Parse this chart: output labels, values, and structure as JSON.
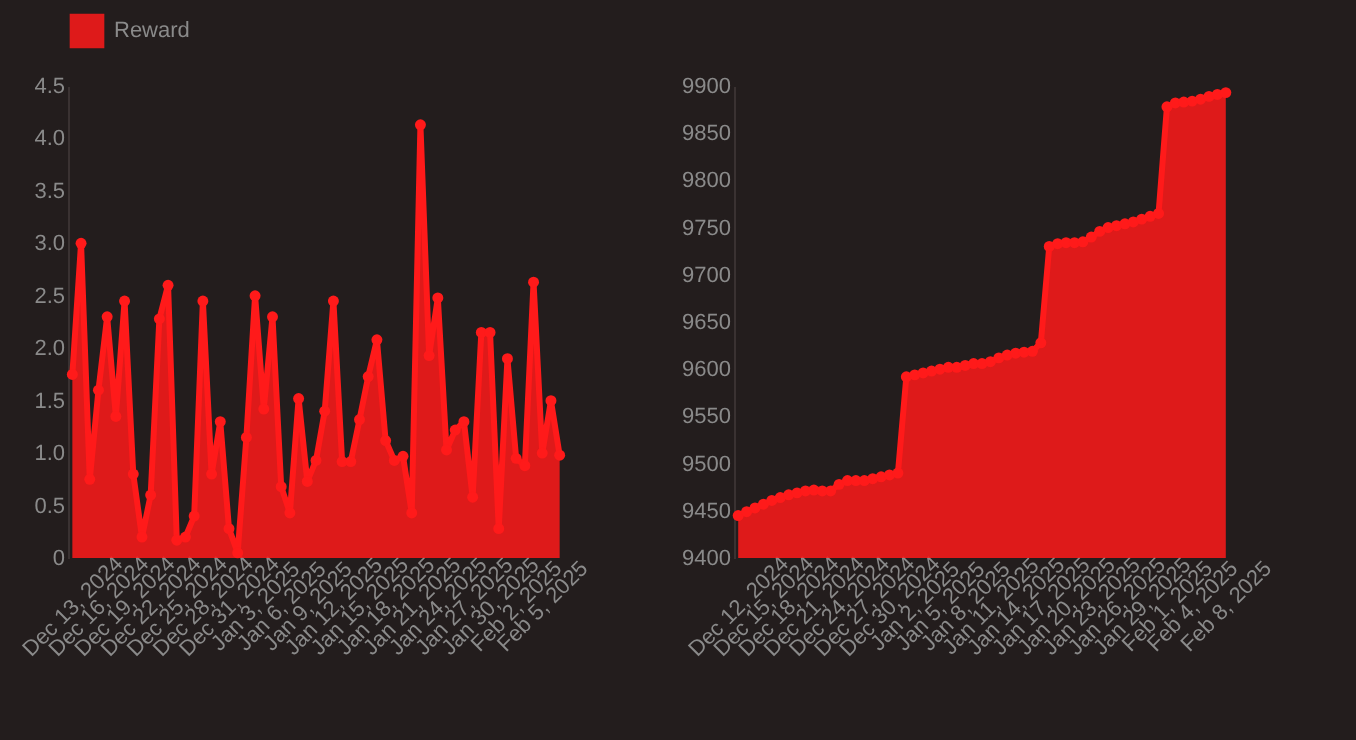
{
  "chart_data": [
    {
      "type": "area",
      "categories": [
        "Dec 13, 2024",
        null,
        null,
        "Dec 16, 2024",
        null,
        null,
        "Dec 19, 2024",
        null,
        null,
        "Dec 22, 2024",
        null,
        null,
        "Dec 25, 2024",
        null,
        null,
        "Dec 28, 2024",
        null,
        null,
        "Dec 31, 2024",
        null,
        null,
        "Jan 3, 2025",
        null,
        null,
        "Jan 6, 2025",
        null,
        null,
        "Jan 9, 2025",
        null,
        null,
        "Jan 12, 2025",
        null,
        null,
        "Jan 15, 2025",
        null,
        null,
        "Jan 18, 2025",
        null,
        null,
        "Jan 21, 2025",
        null,
        null,
        "Jan 24, 2025",
        null,
        null,
        "Jan 27, 2025",
        null,
        null,
        "Jan 30, 2025",
        null,
        null,
        "Feb 2, 2025",
        null,
        null,
        "Feb 5, 2025",
        null,
        null
      ],
      "series": [
        {
          "name": "Reward",
          "color": "#ff1a1a",
          "values": [
            1.75,
            3.0,
            0.75,
            1.6,
            2.3,
            1.35,
            2.45,
            0.8,
            0.2,
            0.6,
            2.28,
            2.6,
            0.17,
            0.2,
            0.4,
            2.45,
            0.8,
            1.3,
            0.28,
            0.05,
            1.15,
            2.5,
            1.42,
            2.3,
            0.68,
            0.43,
            1.52,
            0.73,
            0.93,
            1.4,
            2.45,
            0.92,
            0.92,
            1.32,
            1.73,
            2.08,
            1.12,
            0.93,
            0.97,
            0.43,
            4.13,
            1.93,
            2.48,
            1.03,
            1.22,
            1.3,
            0.58,
            2.15,
            2.15,
            0.28,
            1.9,
            0.95,
            0.88,
            2.63,
            1.0,
            1.5,
            0.98
          ]
        }
      ],
      "ylim": [
        0,
        4.5
      ],
      "yticks": [
        0,
        0.5,
        {
          "value": 1,
          "label": "1.0"
        },
        1.5,
        {
          "value": 2,
          "label": "2.0"
        },
        2.5,
        {
          "value": 3,
          "label": "3.0"
        },
        3.5,
        {
          "value": 4,
          "label": "4.0"
        },
        4.5
      ],
      "legend": "top",
      "marker": "circle",
      "grid": false
    },
    {
      "type": "area",
      "categories": [
        "Dec 12, 2024",
        null,
        null,
        "Dec 15, 2024",
        null,
        null,
        "Dec 18, 2024",
        null,
        null,
        "Dec 21, 2024",
        null,
        null,
        "Dec 24, 2024",
        null,
        null,
        "Dec 27, 2024",
        null,
        null,
        "Dec 30, 2024",
        null,
        null,
        "Jan 2, 2025",
        null,
        null,
        "Jan 5, 2025",
        null,
        null,
        "Jan 8, 2025",
        null,
        null,
        "Jan 11, 2025",
        null,
        null,
        "Jan 14, 2025",
        null,
        null,
        "Jan 17, 2025",
        null,
        null,
        "Jan 20, 2025",
        null,
        null,
        "Jan 23, 2025",
        null,
        null,
        "Jan 26, 2025",
        null,
        null,
        "Jan 29, 2025",
        null,
        null,
        "Feb 1, 2025",
        null,
        null,
        "Feb 4, 2025",
        null,
        null,
        null,
        "Feb 8, 2025"
      ],
      "series": [
        {
          "color": "#ff1a1a",
          "values": [
            9445,
            9449,
            9453,
            9457,
            9461,
            9464,
            9467,
            9469,
            9471,
            9472,
            9471,
            9471,
            9478,
            9482,
            9482,
            9482,
            9484,
            9486,
            9488,
            9490,
            9592,
            9594,
            9596,
            9598,
            9600,
            9602,
            9602,
            9604,
            9606,
            9606,
            9608,
            9612,
            9615,
            9617,
            9618,
            9619,
            9628,
            9730,
            9733,
            9734,
            9734,
            9735,
            9740,
            9746,
            9750,
            9752,
            9754,
            9756,
            9759,
            9762,
            9765,
            9878,
            9882,
            9883,
            9884,
            9886,
            9889,
            9891,
            9893
          ]
        }
      ],
      "ylim": [
        9400,
        9900
      ],
      "yticks": [
        9400,
        9450,
        9500,
        9550,
        9600,
        9650,
        9700,
        9750,
        9800,
        9850,
        9900
      ],
      "marker": "circle",
      "grid": false
    }
  ]
}
